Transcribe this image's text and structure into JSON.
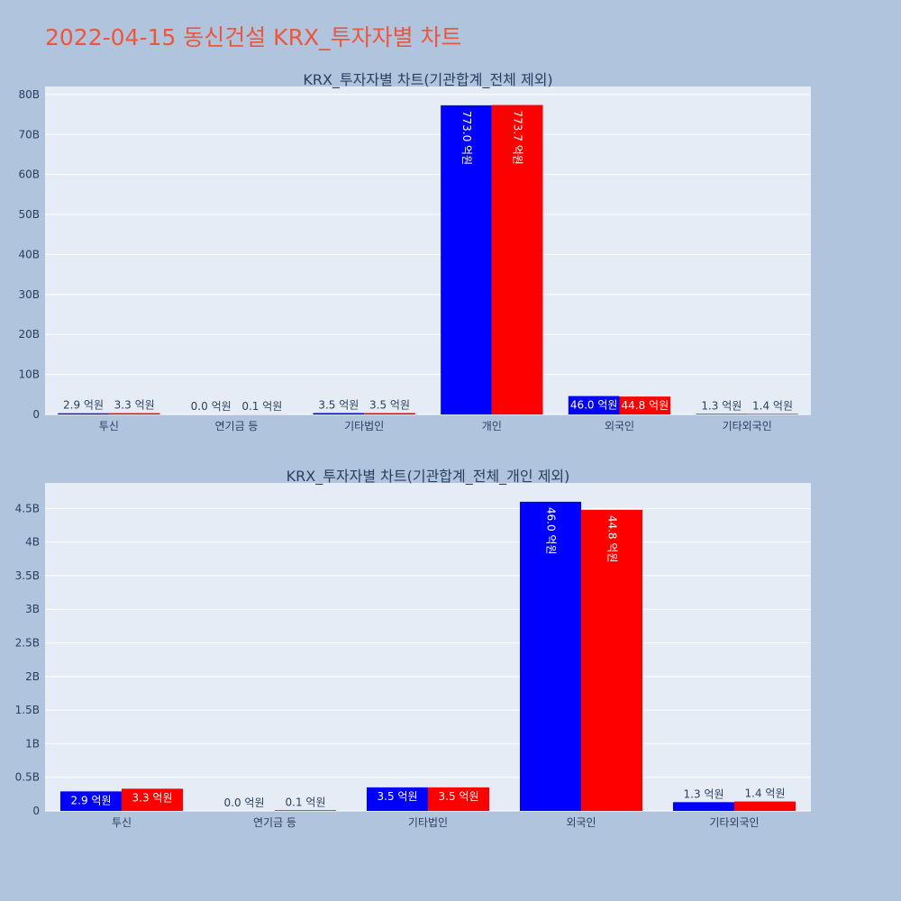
{
  "page": {
    "title": "2022-04-15 동신건설 KRX_투자자별 차트"
  },
  "chart_data": [
    {
      "type": "bar",
      "title": "KRX_투자자별 차트(기관합계_전체 제외)",
      "categories": [
        "투신",
        "연기금 등",
        "기타법인",
        "개인",
        "외국인",
        "기타외국인"
      ],
      "series": [
        {
          "color": "#0000ff",
          "values": [
            290000000,
            0,
            350000000,
            77300000000,
            4600000000,
            130000000
          ],
          "labels": [
            "2.9 억원",
            "0.0 억원",
            "3.5 억원",
            "773.0 억원",
            "46.0 억원",
            "1.3 억원"
          ]
        },
        {
          "color": "#ff0000",
          "values": [
            330000000,
            10000000,
            350000000,
            77370000000,
            4480000000,
            140000000
          ],
          "labels": [
            "3.3 억원",
            "0.1 억원",
            "3.5 억원",
            "773.7 억원",
            "44.8 억원",
            "1.4 억원"
          ]
        }
      ],
      "yticks": [
        "0",
        "10B",
        "20B",
        "30B",
        "40B",
        "50B",
        "60B",
        "70B",
        "80B"
      ],
      "ytick_values": [
        0,
        10000000000,
        20000000000,
        30000000000,
        40000000000,
        50000000000,
        60000000000,
        70000000000,
        80000000000
      ],
      "ylim": [
        0,
        82000000000
      ],
      "grid": true,
      "colors": {
        "background": "#e5ecf6",
        "grid": "#ffffff",
        "text": "#2a3f5f"
      }
    },
    {
      "type": "bar",
      "title": "KRX_투자자별 차트(기관합계_전체_개인 제외)",
      "categories": [
        "투신",
        "연기금 등",
        "기타법인",
        "외국인",
        "기타외국인"
      ],
      "series": [
        {
          "color": "#0000ff",
          "values": [
            290000000,
            0,
            350000000,
            4600000000,
            130000000
          ],
          "labels": [
            "2.9 억원",
            "0.0 억원",
            "3.5 억원",
            "46.0 억원",
            "1.3 억원"
          ]
        },
        {
          "color": "#ff0000",
          "values": [
            330000000,
            10000000,
            350000000,
            4480000000,
            140000000
          ],
          "labels": [
            "3.3 억원",
            "0.1 억원",
            "3.5 억원",
            "44.8 억원",
            "1.4 억원"
          ]
        }
      ],
      "yticks": [
        "0",
        "0.5B",
        "1B",
        "1.5B",
        "2B",
        "2.5B",
        "3B",
        "3.5B",
        "4B",
        "4.5B"
      ],
      "ytick_values": [
        0,
        500000000,
        1000000000,
        1500000000,
        2000000000,
        2500000000,
        3000000000,
        3500000000,
        4000000000,
        4500000000
      ],
      "ylim": [
        0,
        4880000000
      ],
      "grid": true,
      "colors": {
        "background": "#e5ecf6",
        "grid": "#ffffff",
        "text": "#2a3f5f"
      }
    }
  ]
}
